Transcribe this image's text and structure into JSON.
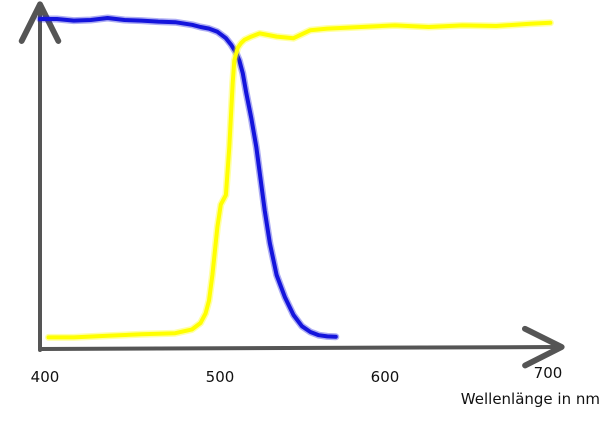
{
  "chart_data": {
    "type": "line",
    "title": "",
    "xlabel": "Wellenlänge in nm",
    "ylabel": "",
    "xlim": [
      400,
      710
    ],
    "ylim": [
      0,
      1
    ],
    "grid": false,
    "legend": "none",
    "x_ticks": [
      400,
      500,
      600,
      700
    ],
    "series": [
      {
        "color": "#1414dc",
        "x": [
          400,
          410,
          420,
          430,
          440,
          450,
          460,
          470,
          480,
          490,
          495,
          500,
          505,
          510,
          513,
          516,
          518,
          520,
          522,
          525,
          528,
          530,
          533,
          536,
          540,
          545,
          550,
          555,
          560,
          565,
          570,
          575
        ],
        "y": [
          1.0,
          1.0,
          0.995,
          0.997,
          1.003,
          0.997,
          0.995,
          0.992,
          0.99,
          0.982,
          0.975,
          0.97,
          0.96,
          0.94,
          0.92,
          0.895,
          0.87,
          0.83,
          0.77,
          0.69,
          0.6,
          0.52,
          0.4,
          0.3,
          0.2,
          0.13,
          0.075,
          0.04,
          0.022,
          0.012,
          0.008,
          0.007
        ]
      },
      {
        "color": "#ffff00",
        "x": [
          405,
          420,
          440,
          460,
          480,
          490,
          495,
          498,
          500,
          502,
          505,
          507,
          510,
          512,
          514,
          515,
          517,
          519,
          521,
          525,
          530,
          540,
          550,
          560,
          570,
          590,
          610,
          630,
          650,
          670,
          690,
          702
        ],
        "y": [
          0.005,
          0.005,
          0.01,
          0.015,
          0.018,
          0.03,
          0.05,
          0.08,
          0.12,
          0.2,
          0.35,
          0.42,
          0.45,
          0.6,
          0.8,
          0.87,
          0.91,
          0.925,
          0.935,
          0.945,
          0.955,
          0.945,
          0.94,
          0.965,
          0.97,
          0.975,
          0.98,
          0.975,
          0.98,
          0.978,
          0.985,
          0.988
        ]
      }
    ]
  }
}
